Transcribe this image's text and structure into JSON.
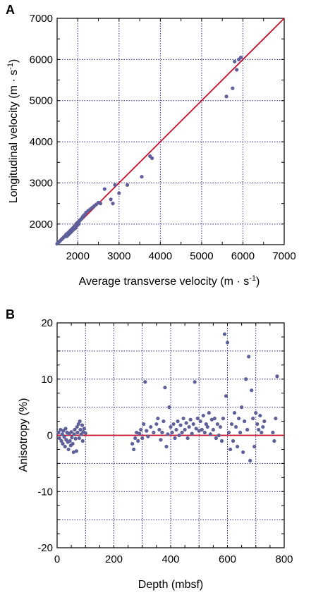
{
  "chart_data": [
    {
      "panel": "A",
      "type": "scatter",
      "xlabel": "Average transverse velocity (m · s",
      "xlabel_sup": "-1",
      "xlabel_end": ")",
      "ylabel": "Longitudinal velocity (m · s",
      "ylabel_sup": "-1",
      "ylabel_end": ")",
      "xlim": [
        1500,
        7000
      ],
      "ylim": [
        1500,
        7000
      ],
      "xticks": [
        2000,
        3000,
        4000,
        5000,
        6000,
        7000
      ],
      "yticks": [
        2000,
        3000,
        4000,
        5000,
        6000,
        7000
      ],
      "grid": true,
      "reference_line": {
        "from": [
          1500,
          1500
        ],
        "to": [
          7000,
          7000
        ],
        "color": "#c8102e"
      },
      "point_color": "#5f5f9a",
      "points": [
        [
          1500,
          1520
        ],
        [
          1520,
          1540
        ],
        [
          1540,
          1560
        ],
        [
          1560,
          1580
        ],
        [
          1580,
          1600
        ],
        [
          1600,
          1620
        ],
        [
          1620,
          1640
        ],
        [
          1640,
          1660
        ],
        [
          1660,
          1680
        ],
        [
          1680,
          1700
        ],
        [
          1700,
          1710
        ],
        [
          1710,
          1730
        ],
        [
          1720,
          1750
        ],
        [
          1730,
          1700
        ],
        [
          1740,
          1760
        ],
        [
          1750,
          1720
        ],
        [
          1760,
          1780
        ],
        [
          1770,
          1740
        ],
        [
          1780,
          1800
        ],
        [
          1790,
          1760
        ],
        [
          1800,
          1820
        ],
        [
          1810,
          1780
        ],
        [
          1820,
          1840
        ],
        [
          1830,
          1800
        ],
        [
          1840,
          1860
        ],
        [
          1850,
          1820
        ],
        [
          1860,
          1880
        ],
        [
          1870,
          1840
        ],
        [
          1880,
          1900
        ],
        [
          1890,
          1860
        ],
        [
          1900,
          1920
        ],
        [
          1910,
          1880
        ],
        [
          1920,
          1940
        ],
        [
          1930,
          1960
        ],
        [
          1940,
          1900
        ],
        [
          1950,
          1980
        ],
        [
          1960,
          2000
        ],
        [
          1970,
          1950
        ],
        [
          1980,
          2020
        ],
        [
          1990,
          1970
        ],
        [
          2000,
          2040
        ],
        [
          2010,
          1990
        ],
        [
          2020,
          2060
        ],
        [
          2030,
          2010
        ],
        [
          2040,
          2080
        ],
        [
          2060,
          2100
        ],
        [
          2080,
          2120
        ],
        [
          2100,
          2140
        ],
        [
          2120,
          2180
        ],
        [
          2140,
          2200
        ],
        [
          2160,
          2220
        ],
        [
          2180,
          2240
        ],
        [
          2200,
          2280
        ],
        [
          2250,
          2320
        ],
        [
          2300,
          2360
        ],
        [
          2350,
          2400
        ],
        [
          2400,
          2440
        ],
        [
          2450,
          2480
        ],
        [
          2500,
          2520
        ],
        [
          2550,
          2500
        ],
        [
          2650,
          2850
        ],
        [
          2800,
          2600
        ],
        [
          2850,
          2500
        ],
        [
          2900,
          2950
        ],
        [
          3000,
          2750
        ],
        [
          3200,
          2950
        ],
        [
          3550,
          3150
        ],
        [
          3750,
          3650
        ],
        [
          3800,
          3600
        ],
        [
          5600,
          5100
        ],
        [
          5750,
          5300
        ],
        [
          5800,
          5950
        ],
        [
          5850,
          5750
        ],
        [
          5900,
          6000
        ],
        [
          5950,
          6050
        ]
      ]
    },
    {
      "panel": "B",
      "type": "scatter",
      "xlabel": "Depth (mbsf)",
      "ylabel": "Anisotropy (%)",
      "xlim": [
        0,
        800
      ],
      "ylim": [
        -20,
        20
      ],
      "xticks": [
        0,
        200,
        400,
        600,
        800
      ],
      "yticks": [
        -20,
        -10,
        0,
        10,
        20
      ],
      "grid": true,
      "reference_line": {
        "from": [
          0,
          0
        ],
        "to": [
          800,
          0
        ],
        "color": "#c8102e"
      },
      "point_color": "#5f5f9a",
      "points": [
        [
          5,
          0.5
        ],
        [
          8,
          -0.5
        ],
        [
          12,
          1
        ],
        [
          15,
          -1
        ],
        [
          18,
          0.2
        ],
        [
          20,
          -1.5
        ],
        [
          22,
          0.8
        ],
        [
          25,
          -0.3
        ],
        [
          28,
          -2
        ],
        [
          30,
          1.2
        ],
        [
          32,
          -0.8
        ],
        [
          35,
          0.5
        ],
        [
          38,
          -1.2
        ],
        [
          40,
          -2.5
        ],
        [
          42,
          0.3
        ],
        [
          45,
          -1
        ],
        [
          48,
          -1.8
        ],
        [
          50,
          0.6
        ],
        [
          52,
          -0.4
        ],
        [
          55,
          -1.5
        ],
        [
          58,
          -3
        ],
        [
          60,
          0.2
        ],
        [
          62,
          1
        ],
        [
          65,
          -0.6
        ],
        [
          68,
          -2.8
        ],
        [
          70,
          1.5
        ],
        [
          72,
          0.5
        ],
        [
          75,
          2
        ],
        [
          78,
          -0.5
        ],
        [
          80,
          2.5
        ],
        [
          82,
          1
        ],
        [
          85,
          0.2
        ],
        [
          88,
          1.8
        ],
        [
          90,
          -1
        ],
        [
          92,
          0.6
        ],
        [
          95,
          1.2
        ],
        [
          100,
          0.4
        ],
        [
          265,
          -1.5
        ],
        [
          270,
          -2.5
        ],
        [
          275,
          -0.5
        ],
        [
          280,
          0.5
        ],
        [
          285,
          -1
        ],
        [
          290,
          0.3
        ],
        [
          295,
          1
        ],
        [
          300,
          -0.5
        ],
        [
          305,
          2
        ],
        [
          310,
          9.5
        ],
        [
          315,
          0.8
        ],
        [
          320,
          -0.2
        ],
        [
          330,
          1.5
        ],
        [
          340,
          0.5
        ],
        [
          350,
          2
        ],
        [
          355,
          3
        ],
        [
          360,
          1
        ],
        [
          365,
          -0.8
        ],
        [
          370,
          0.5
        ],
        [
          375,
          2.5
        ],
        [
          380,
          8.5
        ],
        [
          385,
          -2
        ],
        [
          390,
          0.2
        ],
        [
          395,
          5
        ],
        [
          400,
          1.5
        ],
        [
          405,
          0.5
        ],
        [
          410,
          2
        ],
        [
          415,
          -0.5
        ],
        [
          420,
          1
        ],
        [
          425,
          2.5
        ],
        [
          430,
          0
        ],
        [
          435,
          1.8
        ],
        [
          440,
          0.5
        ],
        [
          445,
          3
        ],
        [
          450,
          1
        ],
        [
          455,
          2.2
        ],
        [
          460,
          -0.5
        ],
        [
          465,
          1.5
        ],
        [
          470,
          2.8
        ],
        [
          475,
          0.3
        ],
        [
          480,
          2
        ],
        [
          485,
          9.5
        ],
        [
          490,
          1.2
        ],
        [
          495,
          3
        ],
        [
          500,
          0.8
        ],
        [
          505,
          2.5
        ],
        [
          510,
          1
        ],
        [
          515,
          3.5
        ],
        [
          520,
          0.5
        ],
        [
          525,
          2
        ],
        [
          530,
          1.5
        ],
        [
          535,
          4
        ],
        [
          540,
          0.2
        ],
        [
          545,
          2.8
        ],
        [
          550,
          1
        ],
        [
          555,
          3
        ],
        [
          560,
          -0.5
        ],
        [
          565,
          2
        ],
        [
          570,
          0
        ],
        [
          575,
          1.5
        ],
        [
          580,
          -1
        ],
        [
          585,
          3
        ],
        [
          590,
          18
        ],
        [
          595,
          7
        ],
        [
          600,
          16.5
        ],
        [
          605,
          0.5
        ],
        [
          610,
          -2.5
        ],
        [
          615,
          2
        ],
        [
          620,
          -1
        ],
        [
          625,
          4
        ],
        [
          630,
          1.5
        ],
        [
          635,
          -2
        ],
        [
          640,
          3
        ],
        [
          645,
          0.5
        ],
        [
          650,
          5
        ],
        [
          655,
          -3
        ],
        [
          660,
          2.5
        ],
        [
          665,
          10
        ],
        [
          670,
          1
        ],
        [
          675,
          14
        ],
        [
          680,
          -4.5
        ],
        [
          685,
          8
        ],
        [
          690,
          3
        ],
        [
          695,
          -2
        ],
        [
          700,
          4
        ],
        [
          705,
          2
        ],
        [
          710,
          1
        ],
        [
          715,
          3.5
        ],
        [
          720,
          0.5
        ],
        [
          725,
          1.5
        ],
        [
          730,
          2.5
        ],
        [
          760,
          0.5
        ],
        [
          765,
          -1
        ],
        [
          770,
          3
        ],
        [
          775,
          10.5
        ]
      ]
    }
  ]
}
